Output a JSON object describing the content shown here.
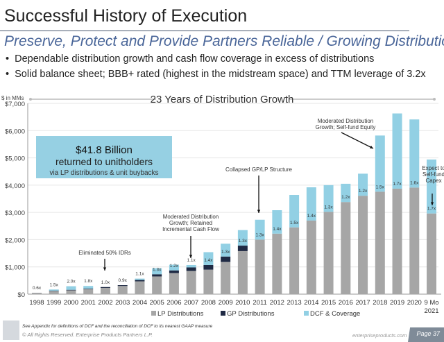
{
  "header": {
    "title": "Successful History of Execution",
    "subtitle": "Preserve, Protect and Provide Partners Reliable / Growing Distributions",
    "bullets": [
      "Dependable distribution growth and cash flow coverage in excess of distributions",
      "Solid balance sheet; BBB+ rated (highest in the midstream space) and TTM leverage of 3.2x"
    ]
  },
  "chart_data": {
    "type": "bar",
    "stacked": true,
    "title": "23 Years of Distribution Growth",
    "ylabel": "$ in MMs",
    "ylim": [
      0,
      7000
    ],
    "yticks": [
      0,
      1000,
      2000,
      3000,
      4000,
      5000,
      6000,
      7000
    ],
    "ytick_labels": [
      "$0",
      "$1,000",
      "$2,000",
      "$3,000",
      "$4,000",
      "$5,000",
      "$6,000",
      "$7,000"
    ],
    "grid": true,
    "legend_position": "bottom",
    "categories": [
      "1998",
      "1999",
      "2000",
      "2001",
      "2002",
      "2003",
      "2004",
      "2005",
      "2006",
      "2007",
      "2008",
      "2009",
      "2010",
      "2011",
      "2012",
      "2013",
      "2014",
      "2015",
      "2016",
      "2017",
      "2018",
      "2019",
      "2020",
      "9 Mo|2021"
    ],
    "series": [
      {
        "name": "LP Distributions",
        "color": "#a6a6a6",
        "values": [
          40,
          110,
          140,
          180,
          230,
          300,
          470,
          650,
          770,
          850,
          900,
          1180,
          1580,
          2000,
          2220,
          2450,
          2700,
          3020,
          3380,
          3610,
          3760,
          3870,
          3910,
          2960
        ]
      },
      {
        "name": "GP Distributions",
        "color": "#1f2a44",
        "values": [
          5,
          15,
          20,
          20,
          30,
          30,
          50,
          80,
          100,
          130,
          170,
          200,
          200,
          0,
          0,
          0,
          0,
          0,
          0,
          0,
          0,
          0,
          0,
          0
        ]
      },
      {
        "name": "DCF & Coverage",
        "color": "#92d0e4",
        "values": [
          0,
          45,
          130,
          100,
          0,
          0,
          50,
          220,
          210,
          90,
          470,
          470,
          570,
          730,
          860,
          1190,
          1220,
          980,
          670,
          810,
          2060,
          2760,
          2500,
          1980
        ]
      }
    ],
    "coverage_labels": [
      "0.6x",
      "1.5x",
      "2.0x",
      "1.8x",
      "1.0x",
      "0.9x",
      "1.1x",
      "1.3x",
      "1.2x",
      "1.1x",
      "1.4x",
      "1.3x",
      "1.3x",
      "1.3x",
      "1.4x",
      "1.5x",
      "1.4x",
      "1.3x",
      "1.2x",
      "1.2x",
      "1.5x",
      "1.7x",
      "1.6x",
      "1.7x"
    ],
    "callout": {
      "headline": "$41.8 Billion",
      "line2": "returned to unitholders",
      "line3": "via LP distributions & unit buybacks"
    },
    "annotations": [
      {
        "lines": [
          "Eliminated 50% IDRs"
        ]
      },
      {
        "lines": [
          "Moderated Distribution",
          "Growth; Retained",
          "Incremental Cash Flow"
        ]
      },
      {
        "lines": [
          "Collapsed GP/LP Structure"
        ]
      },
      {
        "lines": [
          "Moderated Distribution",
          "Growth; Self-fund Equity"
        ]
      },
      {
        "lines": [
          "Expect to",
          "Self-fund",
          "Capex"
        ]
      }
    ]
  },
  "footer": {
    "note": "See Appendix for definitions of DCF and the reconciliation of DCF to its nearest GAAP measure",
    "copyright": "© All Rights Reserved. Enterprise Products Partners L.P.",
    "site": "enterpriseproducts.com",
    "page": "Page 37"
  }
}
